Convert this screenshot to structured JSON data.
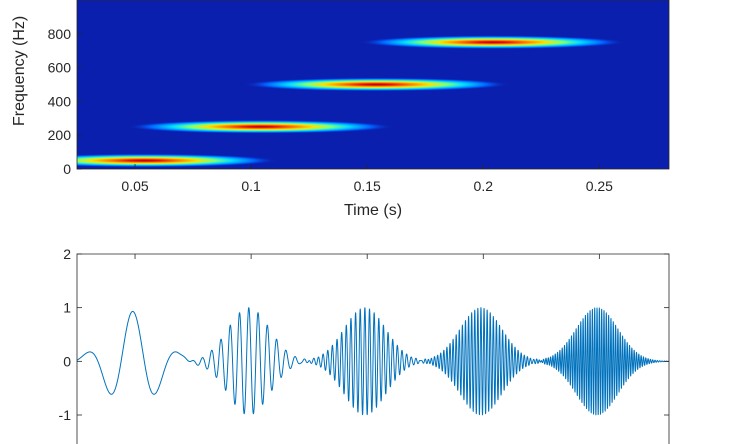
{
  "chart_data": [
    {
      "type": "heatmap",
      "title": "",
      "xlabel": "Time (s)",
      "ylabel": "Frequency (Hz)",
      "xlim": [
        0.025,
        0.28
      ],
      "ylim": [
        0,
        1000
      ],
      "xticks": [
        0.05,
        0.1,
        0.15,
        0.2,
        0.25
      ],
      "xtick_labels": [
        "0.05",
        "0.1",
        "0.15",
        "0.2",
        "0.25"
      ],
      "yticks": [
        0,
        200,
        400,
        600,
        800
      ],
      "ytick_labels": [
        "0",
        "200",
        "400",
        "600",
        "800"
      ],
      "colormap": "jet",
      "background_color": "#0a1fae",
      "components": [
        {
          "time": 0.054,
          "frequency": 50,
          "time_spread": 0.02,
          "freq_spread": 14
        },
        {
          "time": 0.104,
          "frequency": 250,
          "time_spread": 0.02,
          "freq_spread": 14
        },
        {
          "time": 0.154,
          "frequency": 500,
          "time_spread": 0.02,
          "freq_spread": 14
        },
        {
          "time": 0.204,
          "frequency": 750,
          "time_spread": 0.02,
          "freq_spread": 14
        }
      ]
    },
    {
      "type": "line",
      "title": "",
      "xlabel": "",
      "ylabel": "",
      "xlim": [
        0.025,
        0.28
      ],
      "ylim": [
        -1.6,
        2
      ],
      "yticks": [
        -1,
        0,
        1,
        2
      ],
      "ytick_labels": [
        "-1",
        "0",
        "1",
        "2"
      ],
      "line_color": "#0072bd",
      "series": [
        {
          "components": [
            {
              "center": 0.049,
              "frequency": 50,
              "amplitude": 0.93,
              "spread": 0.0105
            },
            {
              "center": 0.099,
              "frequency": 250,
              "amplitude": 1.0,
              "spread": 0.009
            },
            {
              "center": 0.149,
              "frequency": 500,
              "amplitude": 1.0,
              "spread": 0.009
            },
            {
              "center": 0.199,
              "frequency": 750,
              "amplitude": 1.0,
              "spread": 0.009
            },
            {
              "center": 0.249,
              "frequency": 1000,
              "amplitude": 1.0,
              "spread": 0.009
            }
          ]
        }
      ]
    }
  ]
}
